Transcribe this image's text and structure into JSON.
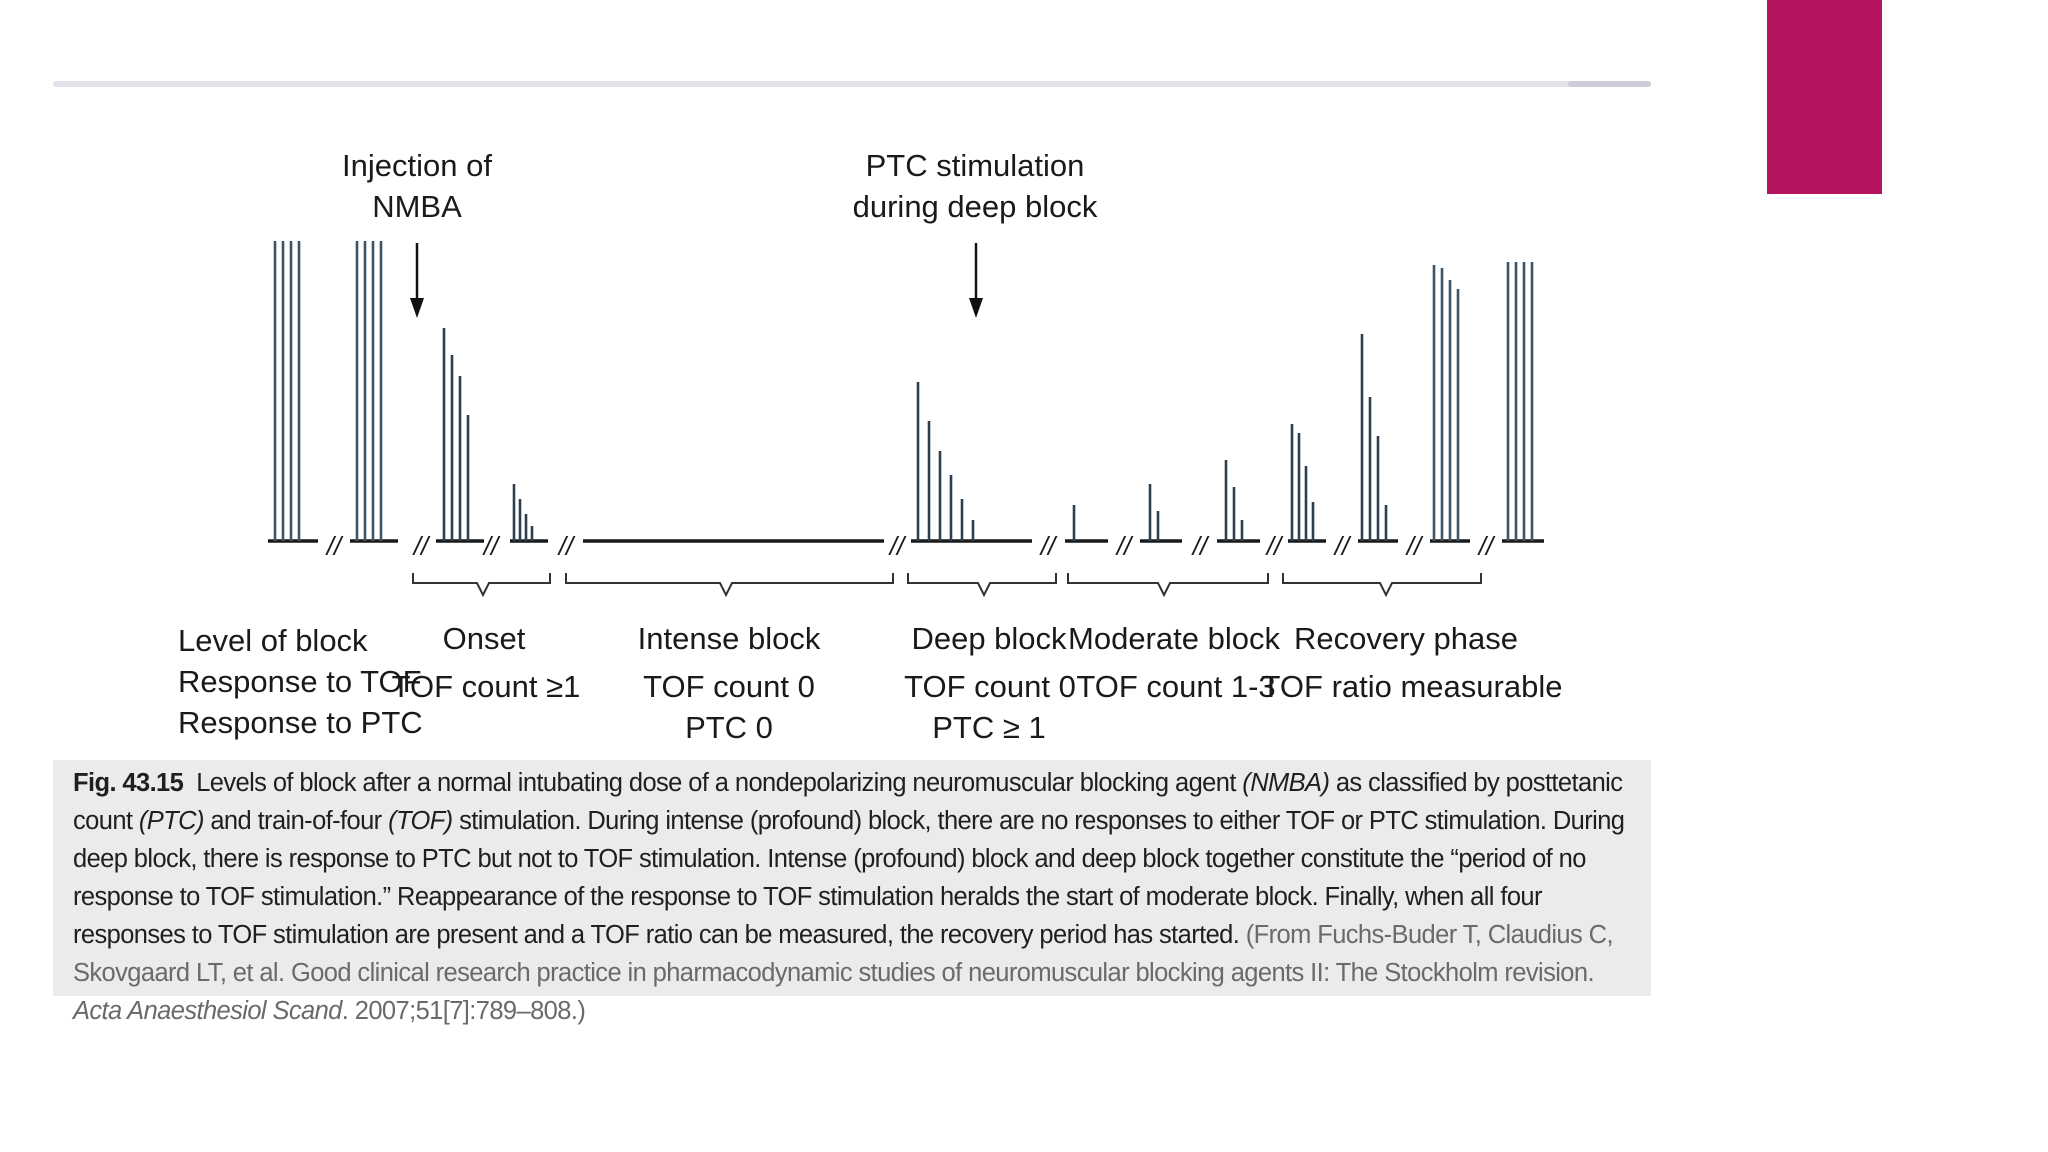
{
  "slide": {
    "accent_color": "#b5145e"
  },
  "diagram": {
    "top_annotations": [
      {
        "line1": "Injection of",
        "line2": "NMBA"
      },
      {
        "line1": "PTC stimulation",
        "line2": "during deep block"
      }
    ],
    "row_labels": [
      "Level of block",
      "Response to TOF",
      "Response to PTC"
    ],
    "phases": [
      {
        "name": "Onset",
        "tof": "TOF count ≥1",
        "ptc": ""
      },
      {
        "name": "Intense block",
        "tof": "TOF count 0",
        "ptc": "PTC 0"
      },
      {
        "name": "Deep block",
        "tof": "TOF count 0",
        "ptc": "PTC ≥ 1"
      },
      {
        "name": "Moderate block",
        "tof": "TOF count 1-3",
        "ptc": ""
      },
      {
        "name": "Recovery phase",
        "tof": "TOF ratio measurable",
        "ptc": ""
      }
    ],
    "break_marker": "//",
    "twitch_heights": {
      "baseline_1": [
        1,
        1,
        1,
        1
      ],
      "baseline_2": [
        1,
        1,
        1,
        1
      ],
      "onset_1": [
        0.71,
        0.62,
        0.55,
        0.42
      ],
      "onset_2": [
        0.19,
        0.14,
        0.09,
        0.05
      ],
      "deep_ptc": [
        0.53,
        0.4,
        0.3,
        0.22,
        0.14,
        0.07
      ],
      "moderate_1": [
        0.12
      ],
      "moderate_2": [
        0.19,
        0.1
      ],
      "moderate_3": [
        0.27,
        0.18,
        0.07
      ],
      "recovery_1": [
        0.39,
        0.36,
        0.25,
        0.13
      ],
      "recovery_2": [
        0.69,
        0.48,
        0.35,
        0.12
      ],
      "recovery_3": [
        0.92,
        0.91,
        0.87,
        0.84
      ],
      "recovery_4": [
        0.93,
        0.93,
        0.93,
        0.93
      ]
    }
  },
  "caption": {
    "fig_label": "Fig. 43.15",
    "text_1": "Levels of block after a normal intubating dose of a nondepolarizing neuromuscular blocking agent ",
    "em_1": "(NMBA)",
    "text_2": " as classified by posttetanic count ",
    "em_2": "(PTC)",
    "text_3": " and train-of-four ",
    "em_3": "(TOF)",
    "text_4": " stimulation. During intense (profound) block, there are no responses to either TOF or PTC stimulation. During deep block, there is response to PTC but not to TOF stimulation. Intense (profound) block and deep block together constitute the “period of no response to TOF stimulation.” Reappearance of the response to TOF stimulation heralds the start of moderate block. Finally, when all four responses to TOF stimulation are present and a TOF ratio can be measured, the recovery period has started.",
    "source_1": "(From Fuchs-Buder T, Claudius C, Skovgaard LT, et al. Good clinical research practice in pharmacodynamic studies of neuromuscular blocking agents II: The Stockholm revision. ",
    "source_em": "Acta Anaesthesiol Scand",
    "source_2": ". 2007;51[7]:789–808.)"
  }
}
